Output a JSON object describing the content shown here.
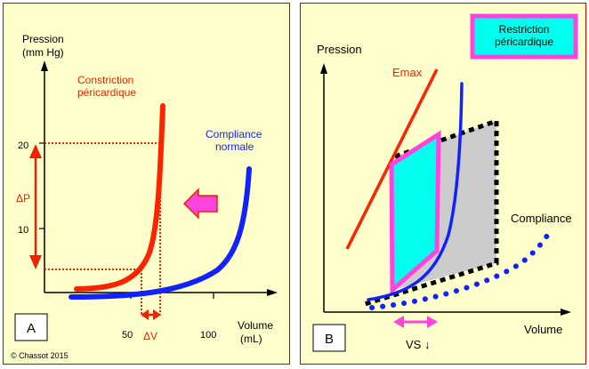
{
  "panel_a": {
    "letter": "A",
    "y_axis_label_line1": "Pression",
    "y_axis_label_line2": "(mm Hg)",
    "x_axis_label_line1": "Volume",
    "x_axis_label_line2": "(mL)",
    "y_ticks": [
      "20",
      "10"
    ],
    "x_ticks": [
      "50",
      "100"
    ],
    "constriction_line1": "Constriction",
    "constriction_line2": "péricardique",
    "compliance_line1": "Compliance",
    "compliance_line2": "normale",
    "delta_p": "ΔP",
    "delta_v": "ΔV",
    "copyright": "© Chassot 2015",
    "colors": {
      "constriction": "#ff2200",
      "compliance": "#1122ff",
      "arrow": "#ff44dd",
      "annot": "#ee2200"
    }
  },
  "panel_b": {
    "letter": "B",
    "title_line1": "Restriction",
    "title_line2": "péricardique",
    "y_axis_label": "Pression",
    "x_axis_label": "Volume",
    "emax_label": "Emax",
    "compliance_label": "Compliance",
    "vs_label": "VS ↓",
    "colors": {
      "emax": "#ff2200",
      "curve": "#1122ff",
      "loop": "#ff44dd",
      "loop_fill": "#00ffee",
      "box_fill": "#00ffee",
      "box_border": "#ff44dd",
      "grey": "#cccccc"
    }
  }
}
